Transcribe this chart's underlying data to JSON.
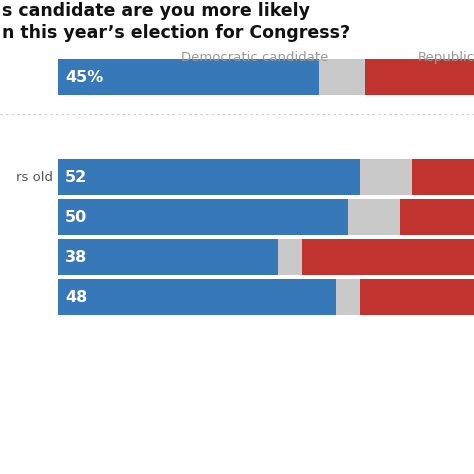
{
  "title_line1": "s candidate are you more likely",
  "title_line2": "n this year’s election for Congress?",
  "col_label_dem": "Democratic candidate",
  "col_label_rep": "Republica",
  "rows": [
    {
      "label": "",
      "dem": 45,
      "gray": 8,
      "rep": 100,
      "text": "45%"
    },
    {
      "label": "rs old",
      "dem": 52,
      "gray": 9,
      "rep": 100,
      "text": "52"
    },
    {
      "label": "",
      "dem": 50,
      "gray": 9,
      "rep": 100,
      "text": "50"
    },
    {
      "label": "",
      "dem": 38,
      "gray": 4,
      "rep": 100,
      "text": "38"
    },
    {
      "label": "",
      "dem": 48,
      "gray": 4,
      "rep": 100,
      "text": "48"
    }
  ],
  "blue_color": "#3778b8",
  "red_color": "#c0332e",
  "gray_color": "#c9c9c9",
  "bg_color": "#ffffff",
  "title_color": "#111111",
  "label_color": "#999999",
  "text_color": "#ffffff",
  "row_label_color": "#555555",
  "separator_color": "#cccccc",
  "fig_w": 4.74,
  "fig_h": 4.74,
  "dpi": 100
}
